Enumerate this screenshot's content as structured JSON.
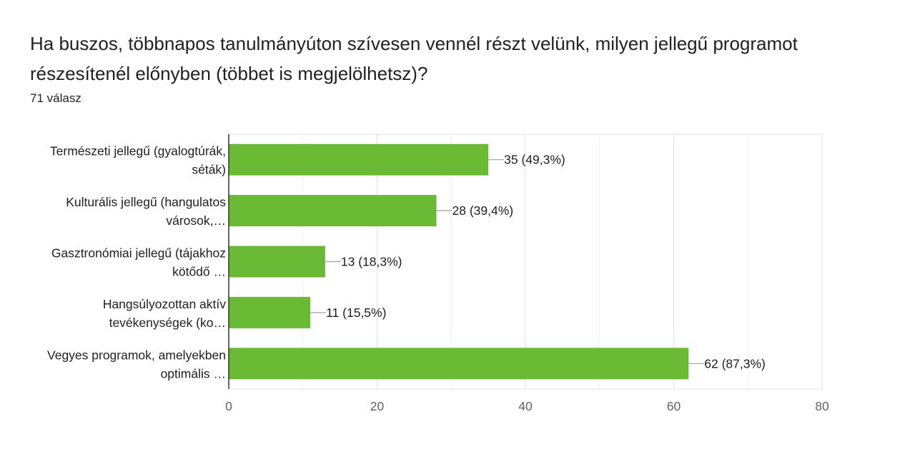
{
  "question": {
    "title": "Ha buszos, többnapos tanulmányúton szívesen vennél részt velünk, milyen jellegű programot részesítenél előnyben (többet is megjelölhetsz)?",
    "response_count": "71 válasz"
  },
  "colors": {
    "bar": "#6aba36",
    "grid": "#e8e8e8",
    "axis": "#333333",
    "leader": "#9e9e9e"
  },
  "chart_data": {
    "type": "bar",
    "orientation": "horizontal",
    "categories": [
      [
        "Természeti jellegű (gyalogtúrák,",
        "séták)"
      ],
      [
        "Kulturális jellegű (hangulatos",
        "városok,…"
      ],
      [
        "Gasztronómiai jellegű (tájakhoz",
        "kötődő …"
      ],
      [
        "Hangsúlyozottan aktív",
        "tevékenységek (ko…"
      ],
      [
        "Vegyes programok, amelyekben",
        "optimális …"
      ]
    ],
    "values": [
      35,
      28,
      13,
      11,
      62
    ],
    "data_labels": [
      "35 (49,3%)",
      "28 (39,4%)",
      "13 (18,3%)",
      "11 (15,5%)",
      "62 (87,3%)"
    ],
    "xlim": [
      0,
      80
    ],
    "x_ticks": [
      0,
      20,
      40,
      60,
      80
    ],
    "grid": true,
    "minor_grid": true
  }
}
